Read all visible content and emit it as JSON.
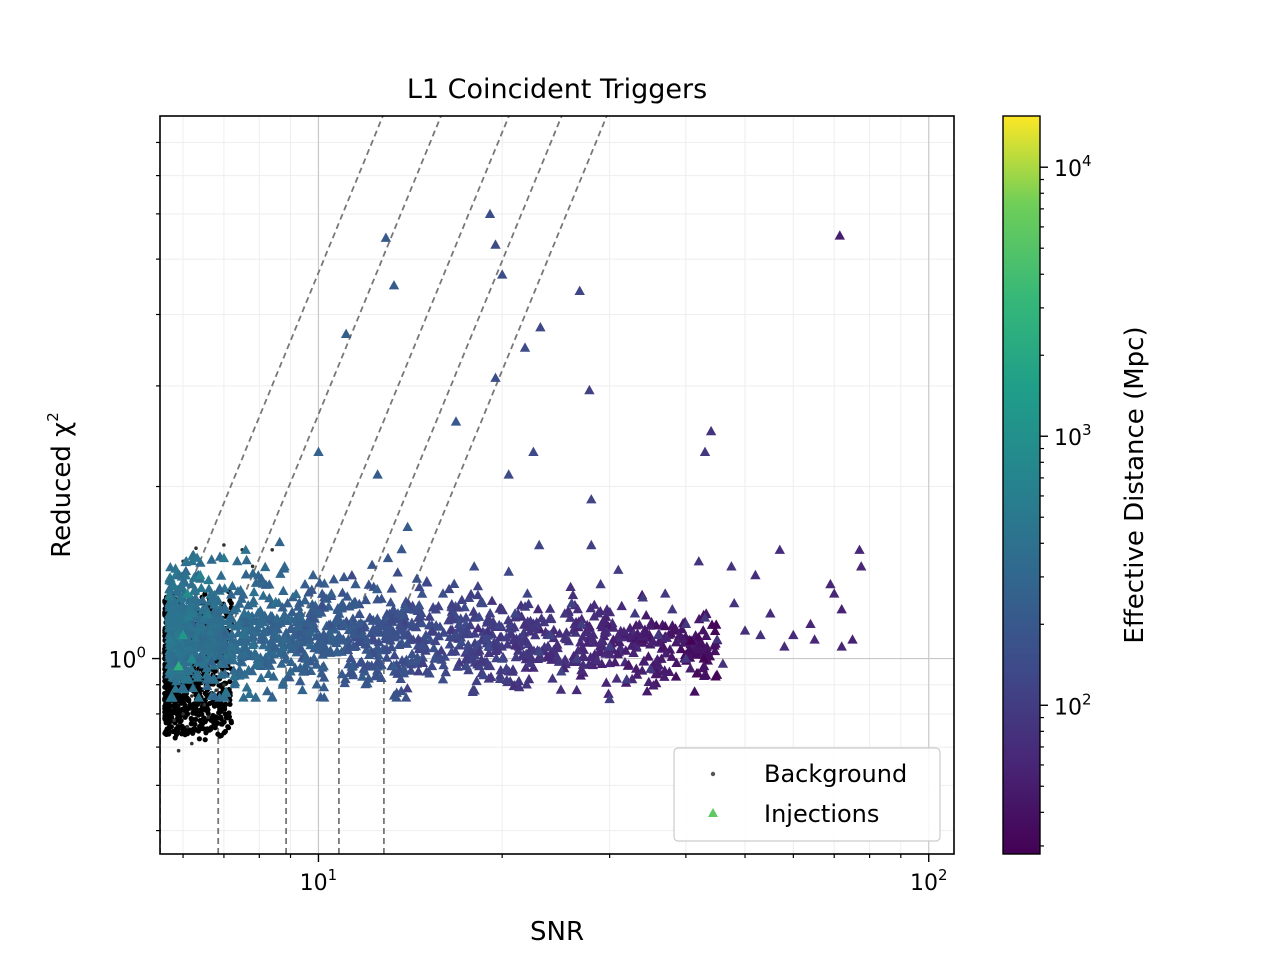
{
  "chart_data": {
    "type": "scatter",
    "title": "L1 Coincident Triggers",
    "xlabel": "SNR",
    "ylabel": "Reduced χ",
    "ylabel_superscript": "2",
    "xscale": "log",
    "yscale": "log",
    "xlim": [
      5.5,
      110
    ],
    "ylim": [
      0.455,
      8.9
    ],
    "grid": true,
    "x_ticks": [
      {
        "value": 10,
        "base": "10",
        "exp": "1"
      },
      {
        "value": 100,
        "base": "10",
        "exp": "2"
      }
    ],
    "y_ticks": [
      {
        "value": 1,
        "base": "10",
        "exp": "0"
      }
    ],
    "colorbar": {
      "label": "Effective Distance (Mpc)",
      "scale": "log",
      "range": [
        28,
        15500
      ],
      "colormap": "viridis",
      "ticks": [
        {
          "value": 100,
          "base": "10",
          "exp": "2"
        },
        {
          "value": 1000,
          "base": "10",
          "exp": "3"
        },
        {
          "value": 10000,
          "base": "10",
          "exp": "4"
        }
      ]
    },
    "legend": {
      "position": "bottom-right",
      "entries": [
        {
          "label": "Background",
          "marker": "dot",
          "color": "#555555"
        },
        {
          "label": "Injections",
          "marker": "triangle",
          "color": "#5ec962"
        }
      ]
    },
    "threshold_curves": [
      {
        "snr_threshold": 5.5
      },
      {
        "snr_threshold": 6.85
      },
      {
        "snr_threshold": 8.85
      },
      {
        "snr_threshold": 10.8
      },
      {
        "snr_threshold": 12.8
      }
    ],
    "series": [
      {
        "name": "Background",
        "marker": "dot",
        "color": "#000000",
        "points": [
          [
            6.2,
            0.86
          ],
          [
            6.5,
            0.83
          ],
          [
            6.0,
            0.8
          ],
          [
            6.8,
            0.88
          ],
          [
            7.0,
            0.9
          ],
          [
            7.4,
            0.93
          ],
          [
            7.8,
            1.0
          ],
          [
            8.0,
            1.35
          ],
          [
            7.5,
            1.55
          ],
          [
            7.0,
            1.58
          ],
          [
            6.3,
            1.56
          ],
          [
            7.8,
            1.45
          ],
          [
            8.2,
            1.12
          ],
          [
            5.8,
            0.78
          ],
          [
            6.1,
            0.76
          ],
          [
            6.6,
            0.79
          ],
          [
            5.9,
            0.69
          ],
          [
            6.0,
            1.48
          ],
          [
            8.4,
            1.55
          ],
          [
            6.2,
            0.71
          ]
        ],
        "bulk_region": {
          "snr_range": [
            5.6,
            7.2
          ],
          "chisq_range": [
            0.75,
            1.25
          ],
          "count": 900
        }
      },
      {
        "name": "Injections",
        "marker": "triangle",
        "points": [
          [
            12.9,
            5.45,
            200
          ],
          [
            19.1,
            6.0,
            150
          ],
          [
            19.5,
            5.3,
            140
          ],
          [
            20.0,
            4.7,
            150
          ],
          [
            13.3,
            4.5,
            220
          ],
          [
            11.1,
            3.7,
            230
          ],
          [
            26.8,
            4.4,
            120
          ],
          [
            23.1,
            3.8,
            130
          ],
          [
            21.8,
            3.5,
            140
          ],
          [
            19.5,
            3.1,
            150
          ],
          [
            27.8,
            2.95,
            110
          ],
          [
            16.8,
            2.6,
            200
          ],
          [
            10.0,
            2.3,
            250
          ],
          [
            44.0,
            2.5,
            80
          ],
          [
            43.0,
            2.3,
            90
          ],
          [
            22.5,
            2.3,
            130
          ],
          [
            20.5,
            2.1,
            140
          ],
          [
            28.0,
            1.9,
            120
          ],
          [
            12.5,
            2.1,
            220
          ],
          [
            14.0,
            1.7,
            210
          ],
          [
            71.5,
            5.5,
            50
          ],
          [
            77.0,
            1.55,
            60
          ],
          [
            77.5,
            1.45,
            60
          ],
          [
            70.0,
            1.3,
            60
          ],
          [
            72.0,
            1.22,
            55
          ],
          [
            69.0,
            1.35,
            60
          ],
          [
            57.0,
            1.55,
            70
          ],
          [
            52.0,
            1.4,
            70
          ],
          [
            47.5,
            1.45,
            80
          ],
          [
            42.0,
            1.48,
            80
          ],
          [
            37.0,
            1.3,
            90
          ],
          [
            31.0,
            1.43,
            100
          ],
          [
            28.0,
            1.58,
            110
          ],
          [
            23.0,
            1.58,
            120
          ],
          [
            20.5,
            1.42,
            130
          ],
          [
            18.0,
            1.45,
            140
          ],
          [
            32.0,
            0.92,
            100
          ],
          [
            30.0,
            0.85,
            100
          ],
          [
            25.0,
            0.95,
            110
          ],
          [
            16.0,
            0.92,
            150
          ],
          [
            35.0,
            0.96,
            90
          ],
          [
            40.0,
            1.0,
            85
          ],
          [
            46.0,
            0.98,
            80
          ],
          [
            60.0,
            1.1,
            65
          ],
          [
            72.0,
            1.05,
            60
          ],
          [
            64.0,
            1.15,
            60
          ],
          [
            55.0,
            1.2,
            70
          ],
          [
            50.0,
            1.12,
            75
          ],
          [
            45.0,
            1.08,
            80
          ],
          [
            40.0,
            1.15,
            85
          ],
          [
            36.0,
            1.1,
            90
          ],
          [
            33.0,
            1.2,
            95
          ],
          [
            30.0,
            1.05,
            100
          ],
          [
            27.0,
            1.15,
            105
          ],
          [
            24.0,
            1.1,
            115
          ],
          [
            21.0,
            1.2,
            125
          ],
          [
            19.0,
            1.05,
            135
          ],
          [
            17.0,
            1.15,
            145
          ],
          [
            15.0,
            1.1,
            160
          ],
          [
            13.5,
            1.2,
            175
          ],
          [
            12.0,
            1.08,
            190
          ],
          [
            11.0,
            1.15,
            210
          ],
          [
            10.0,
            1.05,
            230
          ],
          [
            9.2,
            1.18,
            260
          ],
          [
            8.5,
            1.1,
            300
          ],
          [
            7.8,
            1.25,
            350
          ],
          [
            7.2,
            1.05,
            400
          ],
          [
            6.6,
            1.2,
            520
          ],
          [
            6.2,
            1.0,
            800
          ],
          [
            6.0,
            1.1,
            1200
          ],
          [
            5.9,
            0.97,
            2500
          ],
          [
            6.1,
            1.3,
            900
          ],
          [
            6.4,
            1.4,
            700
          ],
          [
            7.0,
            1.5,
            500
          ],
          [
            7.6,
            1.55,
            400
          ],
          [
            8.8,
            1.45,
            300
          ],
          [
            9.8,
            1.4,
            250
          ],
          [
            10.5,
            1.3,
            240
          ],
          [
            11.5,
            1.35,
            220
          ],
          [
            13.0,
            1.5,
            190
          ],
          [
            14.5,
            1.38,
            170
          ],
          [
            16.0,
            1.3,
            160
          ],
          [
            18.5,
            1.25,
            140
          ],
          [
            22.0,
            1.3,
            125
          ],
          [
            26.0,
            1.25,
            110
          ],
          [
            29.0,
            1.35,
            100
          ],
          [
            34.0,
            1.28,
            95
          ],
          [
            38.0,
            1.22,
            90
          ],
          [
            43.0,
            1.18,
            85
          ],
          [
            48.0,
            1.25,
            80
          ],
          [
            53.0,
            1.1,
            75
          ],
          [
            58.0,
            1.05,
            70
          ],
          [
            65.0,
            1.08,
            62
          ],
          [
            75.0,
            1.08,
            55
          ],
          [
            8.0,
            0.98,
            340
          ],
          [
            9.0,
            0.95,
            280
          ],
          [
            10.2,
            0.97,
            240
          ],
          [
            11.8,
            0.93,
            210
          ],
          [
            13.8,
            0.96,
            180
          ],
          [
            15.5,
            1.0,
            165
          ],
          [
            17.5,
            0.97,
            145
          ],
          [
            20.0,
            1.0,
            130
          ],
          [
            23.0,
            1.03,
            120
          ],
          [
            26.5,
            1.0,
            110
          ]
        ],
        "bulk_region": {
          "snr_range": [
            5.7,
            45
          ],
          "chisq_range": [
            0.9,
            1.6
          ],
          "count": 1600
        }
      }
    ]
  }
}
